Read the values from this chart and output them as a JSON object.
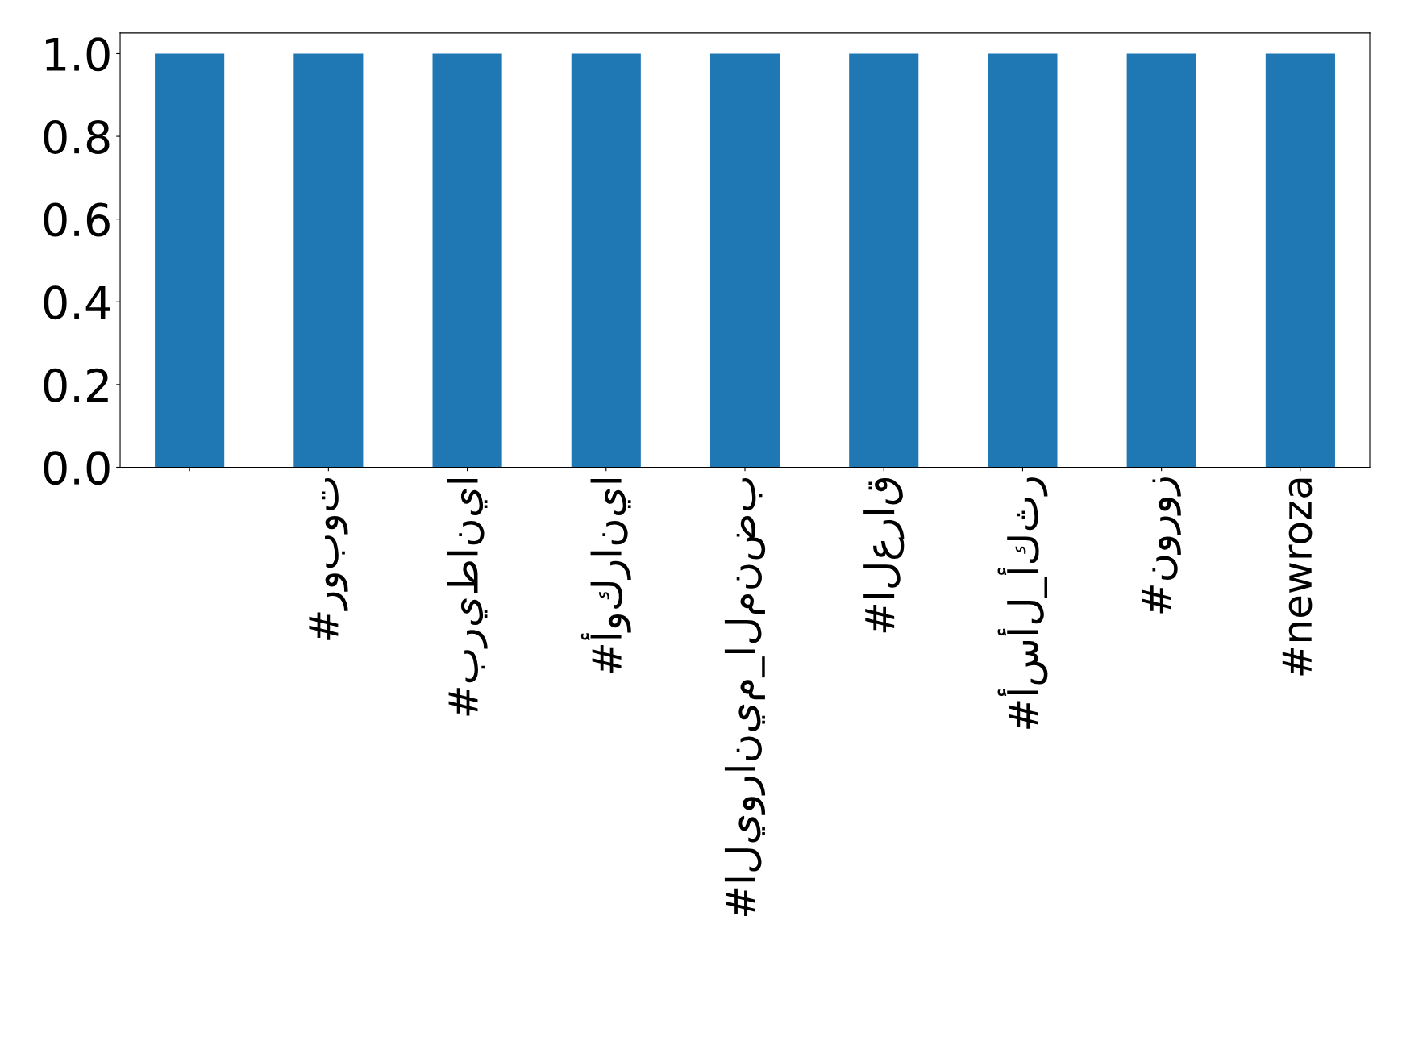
{
  "chart_data": {
    "type": "bar",
    "categories": [
      null,
      "#روبوت",
      "#بريطانيا",
      "#أوكرانيا",
      "#اليورانيم_المنضب",
      "#العراق",
      "#أسأل_أكثر",
      "#نوروز",
      "#newroza"
    ],
    "values": [
      1,
      1,
      1,
      1,
      1,
      1,
      1,
      1,
      1
    ],
    "color": "#1f77b4",
    "ylim": [
      0,
      1.05
    ],
    "yticks": [
      {
        "value": 0,
        "label": "0.0"
      },
      {
        "value": 0.2,
        "label": "0.2"
      },
      {
        "value": 0.4,
        "label": "0.4"
      },
      {
        "value": 0.6,
        "label": "0.6"
      },
      {
        "value": 0.8,
        "label": "0.8"
      },
      {
        "value": 1,
        "label": "1.0"
      }
    ],
    "grid": false,
    "legend": false
  }
}
